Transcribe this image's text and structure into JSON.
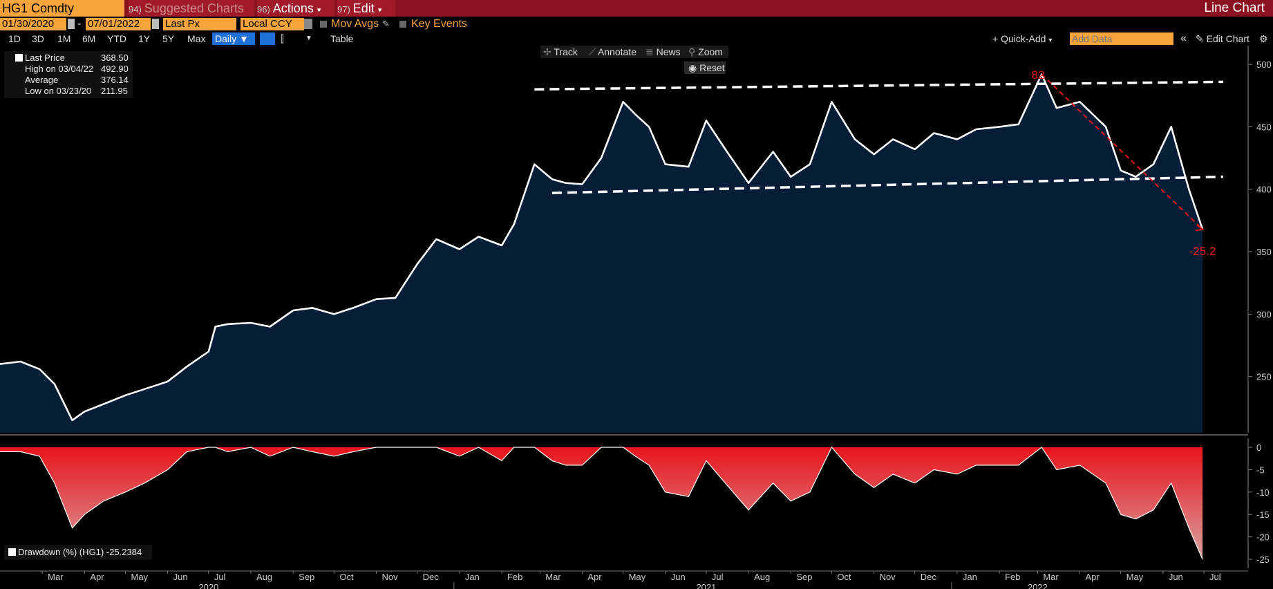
{
  "toolbar": {
    "ticker": "HG1 Comdty",
    "suggested_num": "94)",
    "suggested_label": "Suggested Charts",
    "actions_num": "96)",
    "actions_label": "Actions",
    "edit_num": "97)",
    "edit_label": "Edit",
    "chart_title": "Line Chart"
  },
  "controls": {
    "start_date": "01/30/2020",
    "end_date": "07/01/2022",
    "field": "Last Px",
    "currency": "Local CCY",
    "mov_avgs": "Mov Avgs",
    "key_events": "Key Events",
    "ranges": [
      "1D",
      "3D",
      "1M",
      "6M",
      "YTD",
      "1Y",
      "5Y",
      "Max"
    ],
    "frequency": "Daily",
    "table": "Table",
    "quick_add": "Quick-Add",
    "add_data_placeholder": "Add Data",
    "edit_chart": "Edit Chart",
    "track": "Track",
    "annotate": "Annotate",
    "news": "News",
    "zoom": "Zoom",
    "reset": "Reset"
  },
  "legend": {
    "last_label": "Last Price",
    "last_value": "368.50",
    "high_label": "High on 03/04/22",
    "high_value": "492.90",
    "avg_label": "Average",
    "avg_value": "376.14",
    "low_label": "Low on 03/23/20",
    "low_value": "211.95"
  },
  "lower_legend": {
    "label": "Drawdown (%) (HG1) -25.2384"
  },
  "annotations": {
    "peak_label": "82",
    "drop_label": "-25.2"
  },
  "colors": {
    "price_line": "#ffffff",
    "price_fill": "#061d38",
    "drawdown_fill": "#e8141c",
    "annotation": "#e8141c",
    "toolbar_bg": "#8b1220",
    "accent": "#f7a43c"
  },
  "chart_data": [
    {
      "type": "area",
      "series": [
        {
          "name": "Last Price"
        }
      ],
      "ylim": [
        205,
        515
      ],
      "yticks": [
        250,
        300,
        350,
        400,
        450,
        500
      ],
      "x_start": "2020-01-30",
      "x_end": "2022-07-01",
      "x": [
        "2020-01-30",
        "2020-02-14",
        "2020-02-28",
        "2020-03-10",
        "2020-03-23",
        "2020-04-01",
        "2020-04-15",
        "2020-05-01",
        "2020-05-15",
        "2020-06-01",
        "2020-06-15",
        "2020-07-01",
        "2020-07-06",
        "2020-07-15",
        "2020-08-01",
        "2020-08-15",
        "2020-09-01",
        "2020-09-15",
        "2020-10-01",
        "2020-10-15",
        "2020-11-01",
        "2020-11-15",
        "2020-12-01",
        "2020-12-15",
        "2021-01-01",
        "2021-01-15",
        "2021-02-01",
        "2021-02-10",
        "2021-02-25",
        "2021-03-10",
        "2021-03-20",
        "2021-04-01",
        "2021-04-15",
        "2021-05-01",
        "2021-05-10",
        "2021-05-20",
        "2021-06-01",
        "2021-06-18",
        "2021-07-01",
        "2021-07-15",
        "2021-08-01",
        "2021-08-19",
        "2021-09-01",
        "2021-09-15",
        "2021-10-01",
        "2021-10-18",
        "2021-11-01",
        "2021-11-15",
        "2021-12-01",
        "2021-12-15",
        "2022-01-01",
        "2022-01-15",
        "2022-02-01",
        "2022-02-15",
        "2022-03-04",
        "2022-03-15",
        "2022-04-01",
        "2022-04-20",
        "2022-05-01",
        "2022-05-12",
        "2022-05-25",
        "2022-06-07",
        "2022-06-20",
        "2022-06-30"
      ],
      "values": [
        260,
        262,
        256,
        244,
        215,
        222,
        228,
        235,
        240,
        246,
        258,
        270,
        290,
        292,
        293,
        290,
        303,
        305,
        300,
        305,
        312,
        313,
        340,
        360,
        352,
        362,
        355,
        372,
        420,
        408,
        405,
        404,
        425,
        470,
        460,
        450,
        420,
        418,
        455,
        432,
        405,
        430,
        410,
        420,
        470,
        440,
        428,
        440,
        432,
        445,
        440,
        448,
        450,
        452,
        492,
        465,
        470,
        450,
        415,
        410,
        420,
        450,
        400,
        368
      ]
    },
    {
      "type": "area",
      "series": [
        {
          "name": "Drawdown (%) (HG1)"
        }
      ],
      "ylim": [
        -27,
        2
      ],
      "yticks": [
        0,
        -5,
        -10,
        -15,
        -20,
        -25
      ],
      "x": [
        "2020-01-30",
        "2020-02-14",
        "2020-02-28",
        "2020-03-10",
        "2020-03-23",
        "2020-04-01",
        "2020-04-15",
        "2020-05-01",
        "2020-05-15",
        "2020-06-01",
        "2020-06-15",
        "2020-07-01",
        "2020-07-06",
        "2020-07-15",
        "2020-08-01",
        "2020-08-15",
        "2020-09-01",
        "2020-09-15",
        "2020-10-01",
        "2020-10-15",
        "2020-11-01",
        "2020-11-15",
        "2020-12-01",
        "2020-12-15",
        "2021-01-01",
        "2021-01-15",
        "2021-02-01",
        "2021-02-10",
        "2021-02-25",
        "2021-03-10",
        "2021-03-20",
        "2021-04-01",
        "2021-04-15",
        "2021-05-01",
        "2021-05-10",
        "2021-05-20",
        "2021-06-01",
        "2021-06-18",
        "2021-07-01",
        "2021-07-15",
        "2021-08-01",
        "2021-08-19",
        "2021-09-01",
        "2021-09-15",
        "2021-10-01",
        "2021-10-18",
        "2021-11-01",
        "2021-11-15",
        "2021-12-01",
        "2021-12-15",
        "2022-01-01",
        "2022-01-15",
        "2022-02-01",
        "2022-02-15",
        "2022-03-04",
        "2022-03-15",
        "2022-04-01",
        "2022-04-20",
        "2022-05-01",
        "2022-05-12",
        "2022-05-25",
        "2022-06-07",
        "2022-06-20",
        "2022-06-30"
      ],
      "values": [
        -1,
        -1,
        -2,
        -8,
        -18,
        -15,
        -12,
        -10,
        -8,
        -5,
        -1,
        0,
        0,
        -1,
        0,
        -2,
        0,
        -1,
        -2,
        -1,
        0,
        0,
        0,
        0,
        -2,
        0,
        -3,
        0,
        0,
        -3,
        -4,
        -4,
        0,
        0,
        -2,
        -4,
        -10,
        -11,
        -3,
        -8,
        -14,
        -8,
        -12,
        -10,
        0,
        -6,
        -9,
        -6,
        -8,
        -5,
        -6,
        -4,
        -4,
        -4,
        0,
        -5,
        -4,
        -8,
        -15,
        -16,
        -14,
        -8,
        -18,
        -25
      ]
    }
  ],
  "x_axis": {
    "months": [
      "Mar",
      "Apr",
      "May",
      "Jun",
      "Jul",
      "Aug",
      "Sep",
      "Oct",
      "Nov",
      "Dec",
      "Jan",
      "Feb",
      "Mar",
      "Apr",
      "May",
      "Jun",
      "Jul",
      "Aug",
      "Sep",
      "Oct",
      "Nov",
      "Dec",
      "Jan",
      "Feb",
      "Mar",
      "Apr",
      "May",
      "Jun",
      "Jul"
    ],
    "month_dates": [
      "2020-03-01",
      "2020-04-01",
      "2020-05-01",
      "2020-06-01",
      "2020-07-01",
      "2020-08-01",
      "2020-09-01",
      "2020-10-01",
      "2020-11-01",
      "2020-12-01",
      "2021-01-01",
      "2021-02-01",
      "2021-03-01",
      "2021-04-01",
      "2021-05-01",
      "2021-06-01",
      "2021-07-01",
      "2021-08-01",
      "2021-09-01",
      "2021-10-01",
      "2021-11-01",
      "2021-12-01",
      "2022-01-01",
      "2022-02-01",
      "2022-03-01",
      "2022-04-01",
      "2022-05-01",
      "2022-06-01",
      "2022-07-01"
    ],
    "years": [
      "2020",
      "2021",
      "2022"
    ],
    "year_dates": [
      "2020-07-01",
      "2021-07-01",
      "2022-03-01"
    ]
  }
}
